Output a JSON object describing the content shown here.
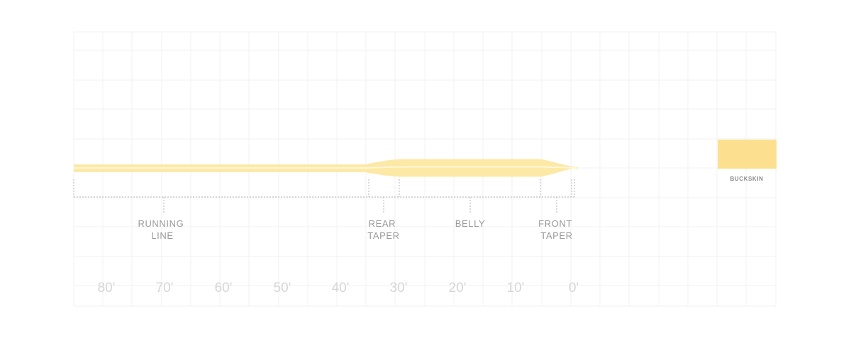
{
  "colors": {
    "line": "#fde9a6",
    "line_highlight": "#fff6d6",
    "swatch": "#fde08f",
    "grid": "#f2f2f2",
    "label": "#9a9a9a",
    "distance": "#d6d6d6"
  },
  "sections": [
    {
      "id": "running-line",
      "lines": [
        "RUNNING",
        "LINE"
      ]
    },
    {
      "id": "rear-taper",
      "lines": [
        "REAR",
        "TAPER"
      ]
    },
    {
      "id": "belly",
      "lines": [
        "BELLY"
      ]
    },
    {
      "id": "front-taper",
      "lines": [
        "FRONT",
        "TAPER"
      ]
    }
  ],
  "distances": [
    "80'",
    "70'",
    "60'",
    "50'",
    "40'",
    "30'",
    "20'",
    "10'",
    "0'"
  ],
  "swatch": {
    "label": "BUCKSKIN"
  }
}
